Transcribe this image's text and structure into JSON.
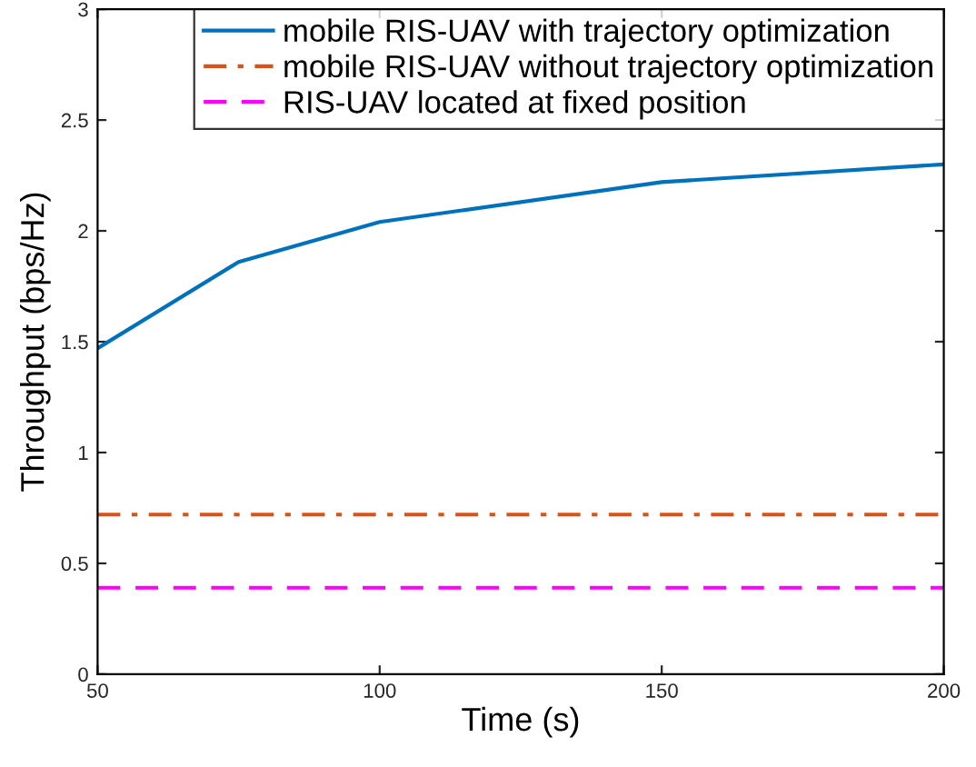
{
  "chart_data": {
    "type": "line",
    "xlabel": "Time (s)",
    "ylabel": "Throughput (bps/Hz)",
    "x": [
      50,
      75,
      100,
      150,
      200
    ],
    "series": [
      {
        "name": "mobile RIS-UAV with trajectory optimization",
        "color": "#0072bd",
        "line_style": "solid",
        "values": [
          1.47,
          1.86,
          2.04,
          2.22,
          2.3
        ]
      },
      {
        "name": "mobile RIS-UAV without trajectory optimization",
        "color": "#d95319",
        "line_style": "dashdot",
        "values": [
          0.72,
          0.72,
          0.72,
          0.72,
          0.72
        ]
      },
      {
        "name": "RIS-UAV located at fixed position",
        "color": "#ff00ff",
        "line_style": "dashed",
        "values": [
          0.39,
          0.39,
          0.39,
          0.39,
          0.39
        ]
      }
    ],
    "xlim": [
      50,
      200
    ],
    "ylim": [
      0,
      3
    ],
    "xticks": [
      50,
      100,
      150,
      200
    ],
    "yticks": [
      0,
      0.5,
      1,
      1.5,
      2,
      2.5,
      3
    ],
    "grid": false,
    "legend": "top right",
    "marker": "none"
  }
}
